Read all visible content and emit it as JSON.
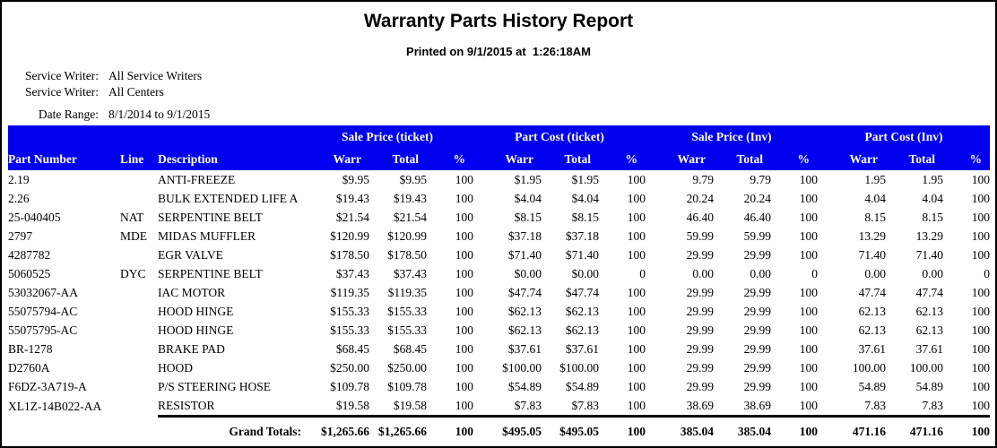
{
  "report": {
    "title": "Warranty Parts History Report",
    "printed_line": "Printed on 9/1/2015 at  1:26:18AM",
    "filters": [
      {
        "label": "Service Writer:",
        "value": "All Service Writers"
      },
      {
        "label": "Service Writer:",
        "value": "All Centers"
      },
      {
        "label": "Date Range:",
        "value": "8/1/2014 to 9/1/2015"
      }
    ]
  },
  "colors": {
    "header_bg": "#0000EE",
    "header_text": "#FFFFFF",
    "body_text": "#000000"
  },
  "table": {
    "group_headers": [
      "Sale Price (ticket)",
      "Part Cost (ticket)",
      "Sale Price (Inv)",
      "Part Cost (Inv)"
    ],
    "columns": [
      "Part Number",
      "Line",
      "Description",
      "Warr",
      "Total",
      "%",
      "Warr",
      "Total",
      "%",
      "Warr",
      "Total",
      "%",
      "Warr",
      "Total",
      "%"
    ],
    "rows": [
      [
        "2.19",
        "",
        "ANTI-FREEZE",
        "$9.95",
        "$9.95",
        "100",
        "$1.95",
        "$1.95",
        "100",
        "9.79",
        "9.79",
        "100",
        "1.95",
        "1.95",
        "100"
      ],
      [
        "2.26",
        "",
        "BULK EXTENDED LIFE A",
        "$19.43",
        "$19.43",
        "100",
        "$4.04",
        "$4.04",
        "100",
        "20.24",
        "20.24",
        "100",
        "4.04",
        "4.04",
        "100"
      ],
      [
        "25-040405",
        "NAT",
        "SERPENTINE BELT",
        "$21.54",
        "$21.54",
        "100",
        "$8.15",
        "$8.15",
        "100",
        "46.40",
        "46.40",
        "100",
        "8.15",
        "8.15",
        "100"
      ],
      [
        "2797",
        "MDE",
        "MIDAS MUFFLER",
        "$120.99",
        "$120.99",
        "100",
        "$37.18",
        "$37.18",
        "100",
        "59.99",
        "59.99",
        "100",
        "13.29",
        "13.29",
        "100"
      ],
      [
        "4287782",
        "",
        "EGR VALVE",
        "$178.50",
        "$178.50",
        "100",
        "$71.40",
        "$71.40",
        "100",
        "29.99",
        "29.99",
        "100",
        "71.40",
        "71.40",
        "100"
      ],
      [
        "5060525",
        "DYC",
        "SERPENTINE BELT",
        "$37.43",
        "$37.43",
        "100",
        "$0.00",
        "$0.00",
        "0",
        "0.00",
        "0.00",
        "0",
        "0.00",
        "0.00",
        "0"
      ],
      [
        "53032067-AA",
        "",
        "IAC MOTOR",
        "$119.35",
        "$119.35",
        "100",
        "$47.74",
        "$47.74",
        "100",
        "29.99",
        "29.99",
        "100",
        "47.74",
        "47.74",
        "100"
      ],
      [
        "55075794-AC",
        "",
        "HOOD HINGE",
        "$155.33",
        "$155.33",
        "100",
        "$62.13",
        "$62.13",
        "100",
        "29.99",
        "29.99",
        "100",
        "62.13",
        "62.13",
        "100"
      ],
      [
        "55075795-AC",
        "",
        "HOOD HINGE",
        "$155.33",
        "$155.33",
        "100",
        "$62.13",
        "$62.13",
        "100",
        "29.99",
        "29.99",
        "100",
        "62.13",
        "62.13",
        "100"
      ],
      [
        "BR-1278",
        "",
        "BRAKE PAD",
        "$68.45",
        "$68.45",
        "100",
        "$37.61",
        "$37.61",
        "100",
        "29.99",
        "29.99",
        "100",
        "37.61",
        "37.61",
        "100"
      ],
      [
        "D2760A",
        "",
        "HOOD",
        "$250.00",
        "$250.00",
        "100",
        "$100.00",
        "$100.00",
        "100",
        "29.99",
        "29.99",
        "100",
        "100.00",
        "100.00",
        "100"
      ],
      [
        "F6DZ-3A719-A",
        "",
        "P/S STEERING HOSE",
        "$109.78",
        "$109.78",
        "100",
        "$54.89",
        "$54.89",
        "100",
        "29.99",
        "29.99",
        "100",
        "54.89",
        "54.89",
        "100"
      ],
      [
        "XL1Z-14B022-AA",
        "",
        "RESISTOR",
        "$19.58",
        "$19.58",
        "100",
        "$7.83",
        "$7.83",
        "100",
        "38.69",
        "38.69",
        "100",
        "7.83",
        "7.83",
        "100"
      ]
    ],
    "grand_totals": {
      "label": "Grand Totals:",
      "values": [
        "$1,265.66",
        "$1,265.66",
        "100",
        "$495.05",
        "$495.05",
        "100",
        "385.04",
        "385.04",
        "100",
        "471.16",
        "471.16",
        "100"
      ]
    }
  }
}
